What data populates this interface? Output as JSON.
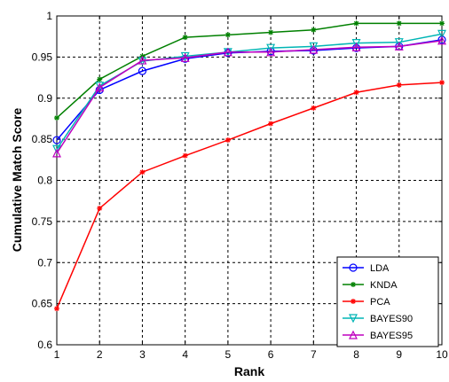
{
  "chart_data": {
    "type": "line",
    "xlabel": "Rank",
    "ylabel": "Cumulative  Match  Score",
    "xlim": [
      1,
      10
    ],
    "ylim": [
      0.6,
      1
    ],
    "grid": true,
    "grid_style": "dashed",
    "legend_position": "bottom-right",
    "x": [
      1,
      2,
      3,
      4,
      5,
      6,
      7,
      8,
      9,
      10
    ],
    "x_ticks": [
      "1",
      "2",
      "3",
      "4",
      "5",
      "6",
      "7",
      "8",
      "9",
      "10"
    ],
    "y_ticks": [
      "0.6",
      "0.65",
      "0.7",
      "0.75",
      "0.8",
      "0.85",
      "0.9",
      "0.95",
      "1"
    ],
    "y_tick_values": [
      0.6,
      0.65,
      0.7,
      0.75,
      0.8,
      0.85,
      0.9,
      0.95,
      1.0
    ],
    "series": [
      {
        "name": "LDA",
        "color": "#0000ff",
        "marker": "circle",
        "values": [
          0.849,
          0.91,
          0.933,
          0.948,
          0.955,
          0.957,
          0.958,
          0.961,
          0.963,
          0.971
        ]
      },
      {
        "name": "KNDA",
        "color": "#008000",
        "marker": "star",
        "values": [
          0.876,
          0.923,
          0.951,
          0.974,
          0.977,
          0.98,
          0.983,
          0.991,
          0.991,
          0.991
        ]
      },
      {
        "name": "PCA",
        "color": "#ff0000",
        "marker": "star",
        "values": [
          0.644,
          0.766,
          0.81,
          0.83,
          0.849,
          0.869,
          0.888,
          0.907,
          0.916,
          0.919
        ]
      },
      {
        "name": "BAYES90",
        "color": "#00b5b5",
        "marker": "triangle-down",
        "values": [
          0.838,
          0.915,
          0.945,
          0.951,
          0.956,
          0.961,
          0.963,
          0.967,
          0.968,
          0.978
        ]
      },
      {
        "name": "BAYES95",
        "color": "#bf00bf",
        "marker": "triangle-up",
        "values": [
          0.833,
          0.913,
          0.946,
          0.949,
          0.956,
          0.956,
          0.959,
          0.962,
          0.963,
          0.97
        ]
      }
    ]
  }
}
